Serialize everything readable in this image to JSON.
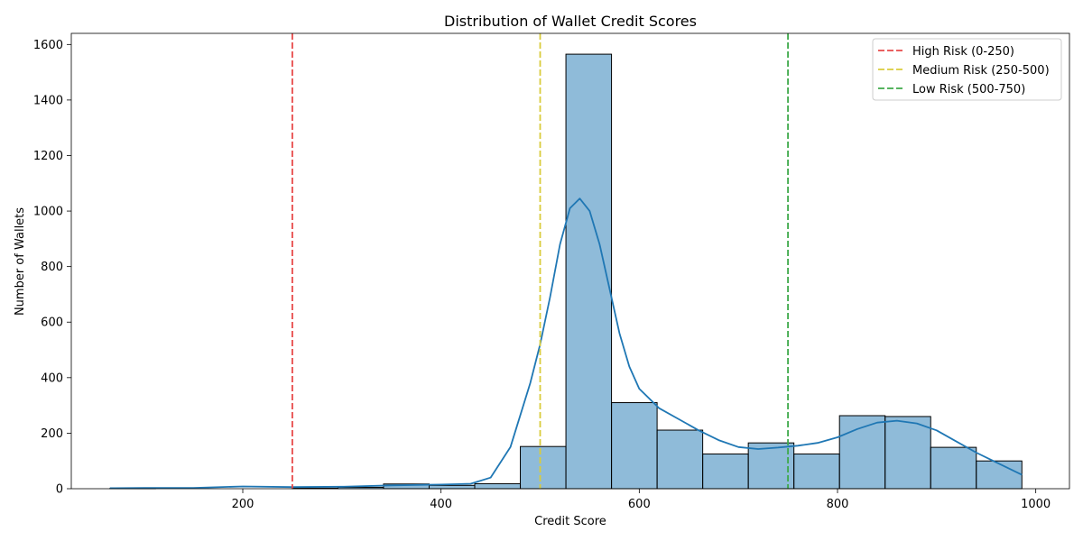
{
  "chart_data": {
    "type": "bar",
    "title": "Distribution of Wallet Credit Scores",
    "xlabel": "Credit Score",
    "ylabel": "Number of Wallets",
    "xlim": [
      27,
      1034
    ],
    "ylim": [
      0,
      1640
    ],
    "xticks": [
      200,
      400,
      600,
      800,
      1000
    ],
    "yticks": [
      0,
      200,
      400,
      600,
      800,
      1000,
      1200,
      1400,
      1600
    ],
    "grid": false,
    "legend_position": "top-right",
    "bar_color": "#1f77b4",
    "kde_color": "#1f77b4",
    "bins": [
      {
        "start": 66,
        "end": 112,
        "count": 1
      },
      {
        "start": 112,
        "end": 158,
        "count": 0
      },
      {
        "start": 158,
        "end": 204,
        "count": 0
      },
      {
        "start": 204,
        "end": 250,
        "count": 0
      },
      {
        "start": 250,
        "end": 296,
        "count": 2
      },
      {
        "start": 296,
        "end": 342,
        "count": 5
      },
      {
        "start": 342,
        "end": 388,
        "count": 17
      },
      {
        "start": 388,
        "end": 434,
        "count": 12
      },
      {
        "start": 434,
        "end": 480,
        "count": 18
      },
      {
        "start": 480,
        "end": 526,
        "count": 152
      },
      {
        "start": 526,
        "end": 572,
        "count": 1565
      },
      {
        "start": 572,
        "end": 618,
        "count": 310
      },
      {
        "start": 618,
        "end": 664,
        "count": 211
      },
      {
        "start": 664,
        "end": 710,
        "count": 125
      },
      {
        "start": 710,
        "end": 756,
        "count": 165
      },
      {
        "start": 756,
        "end": 802,
        "count": 125
      },
      {
        "start": 802,
        "end": 848,
        "count": 263
      },
      {
        "start": 848,
        "end": 894,
        "count": 260
      },
      {
        "start": 894,
        "end": 940,
        "count": 149
      },
      {
        "start": 940,
        "end": 986,
        "count": 100
      }
    ],
    "kde": {
      "name": "",
      "x": [
        66,
        100,
        150,
        200,
        250,
        300,
        350,
        400,
        430,
        450,
        470,
        490,
        500,
        510,
        520,
        530,
        540,
        550,
        560,
        570,
        580,
        590,
        600,
        620,
        640,
        660,
        680,
        700,
        720,
        740,
        760,
        780,
        800,
        820,
        840,
        860,
        880,
        900,
        920,
        940,
        960,
        986
      ],
      "y": [
        2,
        3,
        3,
        8,
        6,
        7,
        12,
        15,
        18,
        40,
        150,
        380,
        520,
        690,
        880,
        1010,
        1045,
        1000,
        880,
        720,
        560,
        440,
        360,
        290,
        250,
        210,
        175,
        150,
        143,
        148,
        155,
        165,
        185,
        215,
        238,
        245,
        235,
        210,
        170,
        130,
        95,
        50
      ]
    },
    "reference_lines": [
      {
        "label": "High Risk (0-250)",
        "x": 250,
        "color": "#e84a4a"
      },
      {
        "label": "Medium Risk (250-500)",
        "x": 500,
        "color": "#d9cc3c"
      },
      {
        "label": "Low Risk (500-750)",
        "x": 750,
        "color": "#3ea94a"
      }
    ]
  }
}
